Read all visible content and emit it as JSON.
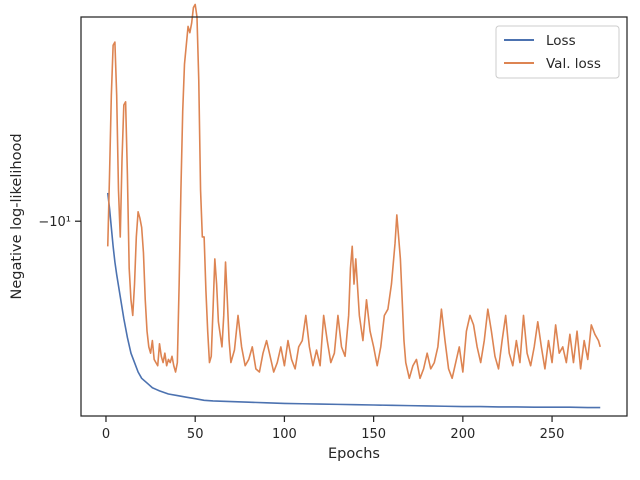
{
  "chart_data": {
    "type": "line",
    "xlabel": "Epochs",
    "ylabel": "Negative log-likelihood",
    "xlim": [
      -14,
      292
    ],
    "ylim": [
      -10.62,
      -9.35
    ],
    "yscale": "symlog",
    "xticks": [
      {
        "value": 0,
        "label": "0"
      },
      {
        "value": 50,
        "label": "50"
      },
      {
        "value": 100,
        "label": "100"
      },
      {
        "value": 150,
        "label": "150"
      },
      {
        "value": 200,
        "label": "200"
      },
      {
        "value": 250,
        "label": "250"
      }
    ],
    "yticks": [
      {
        "value": -10,
        "label": "−10¹"
      }
    ],
    "grid": false,
    "legend": "top-right",
    "series": [
      {
        "name": "Loss",
        "color": "#4c72b0",
        "x": [
          1,
          2,
          3,
          4,
          5,
          6,
          8,
          10,
          12,
          14,
          16,
          18,
          20,
          22,
          24,
          26,
          28,
          30,
          35,
          40,
          45,
          50,
          55,
          60,
          70,
          80,
          90,
          100,
          110,
          120,
          130,
          140,
          150,
          160,
          170,
          180,
          190,
          200,
          210,
          220,
          230,
          240,
          250,
          260,
          270,
          277
        ],
        "y": [
          -9.91,
          -9.96,
          -10.02,
          -10.08,
          -10.13,
          -10.17,
          -10.24,
          -10.31,
          -10.37,
          -10.42,
          -10.45,
          -10.48,
          -10.5,
          -10.51,
          -10.52,
          -10.53,
          -10.535,
          -10.54,
          -10.55,
          -10.555,
          -10.56,
          -10.565,
          -10.57,
          -10.572,
          -10.574,
          -10.576,
          -10.578,
          -10.58,
          -10.581,
          -10.582,
          -10.583,
          -10.584,
          -10.585,
          -10.586,
          -10.587,
          -10.588,
          -10.589,
          -10.59,
          -10.59,
          -10.591,
          -10.591,
          -10.592,
          -10.592,
          -10.592,
          -10.593,
          -10.593
        ]
      },
      {
        "name": "Val. loss",
        "color": "#dd8452",
        "x": [
          1,
          2,
          3,
          4,
          5,
          6,
          7,
          8,
          9,
          10,
          11,
          12,
          13,
          14,
          15,
          16,
          17,
          18,
          19,
          20,
          21,
          22,
          23,
          24,
          25,
          26,
          27,
          28,
          29,
          30,
          31,
          32,
          33,
          34,
          35,
          36,
          37,
          38,
          39,
          40,
          41,
          42,
          43,
          44,
          45,
          46,
          47,
          48,
          49,
          50,
          51,
          52,
          53,
          54,
          55,
          56,
          57,
          58,
          59,
          60,
          61,
          62,
          63,
          64,
          65,
          66,
          67,
          68,
          69,
          70,
          72,
          74,
          76,
          78,
          80,
          82,
          84,
          86,
          88,
          90,
          92,
          94,
          96,
          98,
          100,
          102,
          104,
          106,
          108,
          110,
          112,
          114,
          116,
          118,
          120,
          122,
          124,
          126,
          128,
          130,
          132,
          134,
          136,
          137,
          138,
          139,
          140,
          142,
          144,
          146,
          148,
          150,
          152,
          154,
          156,
          158,
          160,
          162,
          163,
          164,
          165,
          166,
          167,
          168,
          170,
          172,
          174,
          176,
          178,
          180,
          182,
          184,
          186,
          188,
          190,
          192,
          194,
          196,
          198,
          200,
          202,
          204,
          206,
          208,
          210,
          212,
          214,
          216,
          218,
          220,
          222,
          224,
          226,
          228,
          230,
          232,
          234,
          236,
          238,
          240,
          242,
          244,
          246,
          248,
          250,
          252,
          254,
          256,
          258,
          260,
          262,
          264,
          266,
          268,
          270,
          272,
          274,
          276,
          277
        ],
        "y": [
          -10.08,
          -9.85,
          -9.6,
          -9.44,
          -9.43,
          -9.6,
          -9.9,
          -10.05,
          -9.8,
          -9.63,
          -9.62,
          -9.85,
          -10.15,
          -10.25,
          -10.3,
          -10.2,
          -10.05,
          -9.97,
          -9.99,
          -10.02,
          -10.1,
          -10.25,
          -10.35,
          -10.4,
          -10.42,
          -10.38,
          -10.44,
          -10.45,
          -10.46,
          -10.39,
          -10.43,
          -10.45,
          -10.42,
          -10.46,
          -10.44,
          -10.45,
          -10.43,
          -10.46,
          -10.48,
          -10.45,
          -10.2,
          -9.9,
          -9.65,
          -9.5,
          -9.44,
          -9.38,
          -9.4,
          -9.37,
          -9.32,
          -9.31,
          -9.35,
          -9.55,
          -9.9,
          -10.05,
          -10.05,
          -10.22,
          -10.35,
          -10.45,
          -10.43,
          -10.28,
          -10.12,
          -10.2,
          -10.32,
          -10.36,
          -10.4,
          -10.3,
          -10.13,
          -10.25,
          -10.38,
          -10.45,
          -10.41,
          -10.3,
          -10.4,
          -10.46,
          -10.44,
          -10.4,
          -10.47,
          -10.48,
          -10.42,
          -10.38,
          -10.43,
          -10.48,
          -10.45,
          -10.4,
          -10.46,
          -10.38,
          -10.44,
          -10.47,
          -10.4,
          -10.38,
          -10.3,
          -10.4,
          -10.46,
          -10.41,
          -10.46,
          -10.3,
          -10.38,
          -10.45,
          -10.42,
          -10.3,
          -10.4,
          -10.43,
          -10.3,
          -10.15,
          -10.08,
          -10.2,
          -10.12,
          -10.3,
          -10.38,
          -10.25,
          -10.35,
          -10.4,
          -10.46,
          -10.4,
          -10.3,
          -10.28,
          -10.2,
          -10.07,
          -9.98,
          -10.05,
          -10.12,
          -10.25,
          -10.38,
          -10.45,
          -10.5,
          -10.46,
          -10.44,
          -10.5,
          -10.47,
          -10.42,
          -10.47,
          -10.45,
          -10.4,
          -10.28,
          -10.38,
          -10.47,
          -10.5,
          -10.45,
          -10.4,
          -10.48,
          -10.35,
          -10.3,
          -10.33,
          -10.4,
          -10.45,
          -10.38,
          -10.28,
          -10.35,
          -10.43,
          -10.47,
          -10.38,
          -10.3,
          -10.42,
          -10.46,
          -10.38,
          -10.45,
          -10.3,
          -10.42,
          -10.46,
          -10.4,
          -10.32,
          -10.4,
          -10.47,
          -10.38,
          -10.45,
          -10.33,
          -10.42,
          -10.4,
          -10.45,
          -10.36,
          -10.45,
          -10.35,
          -10.47,
          -10.38,
          -10.44,
          -10.33,
          -10.36,
          -10.38,
          -10.4
        ]
      }
    ]
  }
}
